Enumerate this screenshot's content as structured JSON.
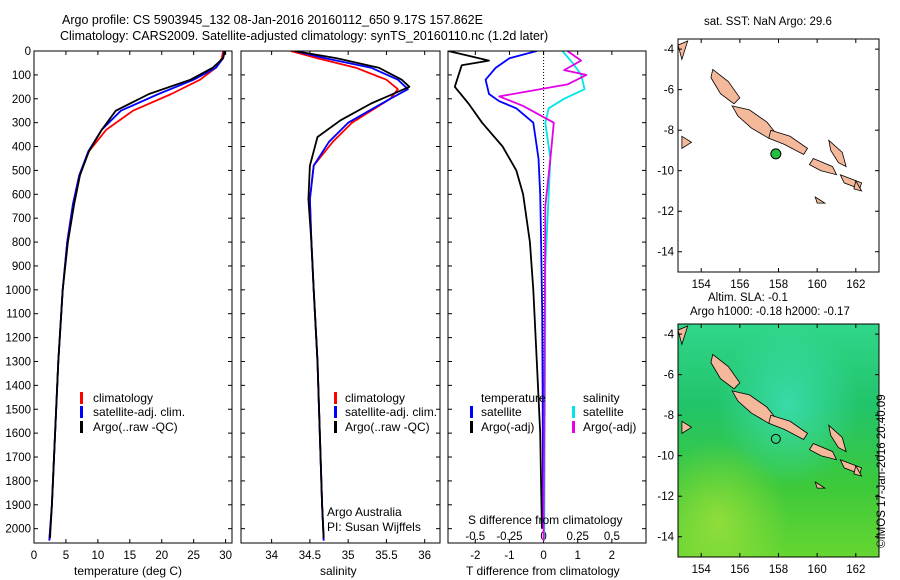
{
  "header": {
    "title_line1": "Argo profile: CS 5903945_132 08-Jan-2016 20160112_650 9.17S 157.862E",
    "title_line2": "Climatology: CARS2009. Satellite-adjusted climatology: synTS_20160110.nc (1.2d later)"
  },
  "credits": {
    "org": "Argo Australia",
    "pi": "PI: Susan Wijffels",
    "imos": "©IMOS 17-Jan-2016 20:40:09"
  },
  "colors": {
    "climatology": "#ff0000",
    "satellite": "#0000ff",
    "argo": "#000000",
    "satellite_s": "#00e5e5",
    "argo_s": "#e500e5",
    "land": "#f4b89a",
    "argo_marker": "#22c040"
  },
  "chart_data": [
    {
      "type": "line",
      "name": "temperature",
      "xlabel": "temperature (deg C)",
      "xlim": [
        0,
        31
      ],
      "xticks": [
        0,
        5,
        10,
        15,
        20,
        25,
        30
      ],
      "ylim": [
        2060,
        0
      ],
      "yticks": [
        0,
        100,
        200,
        300,
        400,
        500,
        600,
        700,
        800,
        900,
        1000,
        1100,
        1200,
        1300,
        1400,
        1500,
        1600,
        1700,
        1800,
        1900,
        2000
      ],
      "legend": [
        "climatology",
        "satellite-adj. clim.",
        "Argo(..raw -QC)"
      ],
      "series": [
        {
          "key": "climatology",
          "x": [
            29.6,
            29.4,
            28.5,
            26,
            21.5,
            15.5,
            11.3,
            8.6,
            7.1,
            6.1,
            5.2,
            4.5,
            3.8,
            3.3,
            2.8,
            2.4
          ],
          "y": [
            0,
            30,
            70,
            120,
            180,
            250,
            330,
            420,
            520,
            640,
            800,
            1000,
            1300,
            1600,
            1900,
            2050
          ]
        },
        {
          "key": "satellite",
          "x": [
            29.8,
            29.6,
            28.5,
            25,
            19.5,
            13.6,
            10.6,
            8.5,
            7.1,
            6.1,
            5.2,
            4.5,
            3.8,
            3.3,
            2.8,
            2.4
          ],
          "y": [
            0,
            30,
            70,
            120,
            180,
            250,
            330,
            420,
            520,
            640,
            800,
            1000,
            1300,
            1600,
            1900,
            2050
          ]
        },
        {
          "key": "argo",
          "x": [
            29.9,
            29.6,
            28,
            24.5,
            18,
            12.8,
            10.6,
            8.6,
            7.2,
            6.3,
            5.3,
            4.5,
            3.8,
            3.3,
            2.8,
            2.5
          ],
          "y": [
            0,
            30,
            70,
            120,
            180,
            250,
            330,
            420,
            520,
            640,
            800,
            1000,
            1300,
            1600,
            1900,
            2040
          ]
        }
      ]
    },
    {
      "type": "line",
      "name": "salinity",
      "xlabel": "salinity",
      "xlim": [
        33.6,
        36.2
      ],
      "xticks": [
        34,
        34.5,
        35,
        35.5,
        36
      ],
      "ylim": [
        2060,
        0
      ],
      "legend": [
        "climatology",
        "satellite-adj. clim.",
        "Argo(..raw -QC)"
      ],
      "series": [
        {
          "key": "climatology",
          "x": [
            34.25,
            34.6,
            35.1,
            35.5,
            35.65,
            35.55,
            35.05,
            34.8,
            34.55,
            34.5,
            34.52,
            34.55,
            34.6,
            34.63,
            34.66,
            34.68
          ],
          "y": [
            0,
            30,
            70,
            120,
            160,
            200,
            300,
            380,
            480,
            620,
            800,
            1000,
            1300,
            1600,
            1900,
            2050
          ]
        },
        {
          "key": "satellite",
          "x": [
            34.3,
            34.7,
            35.3,
            35.65,
            35.78,
            35.55,
            35,
            34.75,
            34.55,
            34.5,
            34.52,
            34.55,
            34.6,
            34.63,
            34.66,
            34.68
          ],
          "y": [
            0,
            30,
            70,
            120,
            160,
            200,
            300,
            380,
            480,
            620,
            800,
            1000,
            1300,
            1600,
            1900,
            2050
          ]
        },
        {
          "key": "argo",
          "x": [
            34.3,
            34.85,
            35.4,
            35.7,
            35.8,
            35.3,
            34.9,
            34.6,
            34.5,
            34.48,
            34.52,
            34.55,
            34.6,
            34.63,
            34.66,
            34.68
          ],
          "y": [
            0,
            30,
            70,
            120,
            150,
            220,
            290,
            360,
            480,
            620,
            800,
            1000,
            1300,
            1600,
            1900,
            2040
          ]
        }
      ]
    },
    {
      "type": "line",
      "name": "difference",
      "xlabel": "T difference from climatology",
      "top_label": "S difference from climatology",
      "xlim": [
        -2.8,
        3.0
      ],
      "xticks": [
        -2,
        -1,
        0,
        1,
        2
      ],
      "top_ticks": [
        "-0.5",
        "-0.25",
        "0",
        "0.25",
        "0.5"
      ],
      "top_tick_pos": [
        -2,
        -1,
        0,
        1,
        2
      ],
      "ylim": [
        2060,
        0
      ],
      "legend_t": [
        "temperature",
        "satellite",
        "Argo(-adj)"
      ],
      "legend_s": [
        "salinity",
        "satellite",
        "Argo(-adj)"
      ],
      "series": [
        {
          "key": "argo_t",
          "x": [
            -2.8,
            -2.2,
            -1.6,
            -2.4,
            -2.6,
            -2.2,
            -1.8,
            -1.2,
            -0.8,
            -0.6,
            -0.5,
            -0.4,
            -0.3,
            -0.2,
            -0.1,
            -0.05
          ],
          "y": [
            0,
            20,
            40,
            60,
            150,
            220,
            300,
            400,
            500,
            600,
            700,
            800,
            1000,
            1300,
            1600,
            2000
          ]
        },
        {
          "key": "sat_t",
          "x": [
            -0.2,
            -1.0,
            -1.4,
            -1.7,
            -1.6,
            -1.3,
            -0.8,
            -0.3,
            -0.15,
            -0.1,
            -0.08,
            -0.06,
            -0.04,
            -0.03,
            -0.02,
            -0.01
          ],
          "y": [
            0,
            30,
            70,
            120,
            180,
            210,
            240,
            300,
            450,
            600,
            750,
            900,
            1100,
            1400,
            1700,
            2000
          ]
        },
        {
          "key": "sat_s",
          "x": [
            0.55,
            0.85,
            1.1,
            1.2,
            0.6,
            0.15,
            0.05,
            0.2,
            0.15,
            0.1,
            0.05,
            0.05,
            0.04,
            0.03,
            0.02,
            0.01
          ],
          "y": [
            0,
            50,
            100,
            160,
            200,
            240,
            300,
            450,
            600,
            750,
            900,
            1100,
            1400,
            1700,
            2000,
            2050
          ]
        },
        {
          "key": "argo_s",
          "x": [
            0.7,
            1.1,
            0.6,
            1.25,
            0.7,
            -1.3,
            -0.6,
            0.3,
            0.2,
            0.05,
            0.04,
            0.03,
            0.02,
            0.01,
            0,
            0
          ],
          "y": [
            0,
            40,
            80,
            100,
            140,
            190,
            230,
            300,
            450,
            650,
            900,
            1200,
            1500,
            1800,
            2000,
            2050
          ]
        }
      ]
    },
    {
      "type": "map",
      "name": "sst-map",
      "title": "sat. SST: NaN Argo: 29.6",
      "xlim": [
        152.8,
        163.2
      ],
      "ylim": [
        -15,
        -3.5
      ],
      "xticks": [
        154,
        156,
        158,
        160,
        162
      ],
      "yticks": [
        -4,
        -6,
        -8,
        -10,
        -12,
        -14
      ],
      "argo_position": [
        157.862,
        -9.17
      ]
    },
    {
      "type": "map",
      "name": "sla-map",
      "title_line1": "Altim. SLA: -0.1",
      "title_line2": "Argo h1000: -0.18 h2000: -0.17",
      "xlim": [
        152.8,
        163.2
      ],
      "ylim": [
        -15,
        -3.5
      ],
      "xticks": [
        154,
        156,
        158,
        160,
        162
      ],
      "yticks": [
        -4,
        -6,
        -8,
        -10,
        -12,
        -14
      ],
      "argo_position": [
        157.862,
        -9.17
      ]
    }
  ]
}
